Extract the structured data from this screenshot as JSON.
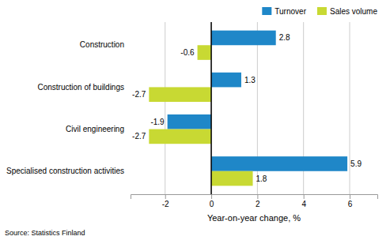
{
  "chart_data": {
    "type": "bar",
    "orientation": "horizontal",
    "categories": [
      "Specialised construction activities",
      "Civil engineering",
      "Construction of buildings",
      "Construction"
    ],
    "series": [
      {
        "name": "Turnover",
        "color": "#1f87c8",
        "values": [
          5.9,
          -1.9,
          1.3,
          2.8
        ]
      },
      {
        "name": "Sales volume",
        "color": "#c8d933",
        "values": [
          1.8,
          -2.7,
          -2.7,
          -0.6
        ]
      }
    ],
    "xlabel": "Year-on-year change, %",
    "xlim": [
      -3.5,
      7.2
    ],
    "xticks": [
      -2,
      0,
      2,
      4,
      6
    ],
    "grid": true,
    "data_labels": true,
    "legend": "top",
    "annotations": [
      "Source: Statistics Finland"
    ]
  }
}
